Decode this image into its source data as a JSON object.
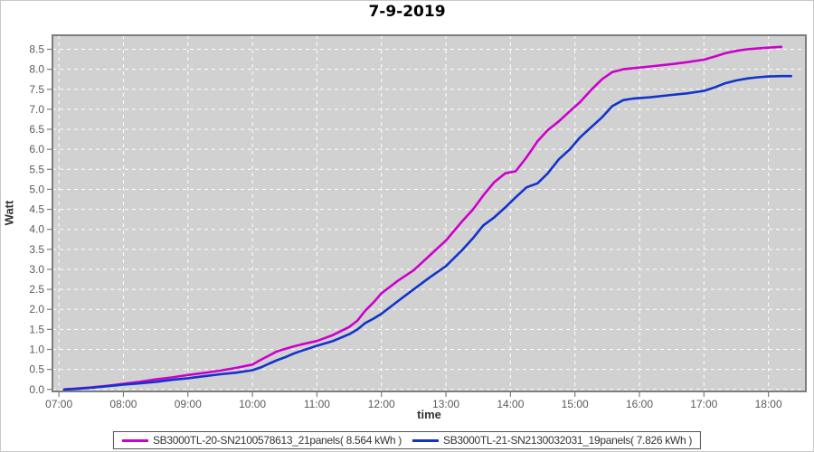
{
  "title": "7-9-2019",
  "axes": {
    "x_label": "time",
    "y_label": "Watt",
    "x_tick_labels": [
      "07:00",
      "08:00",
      "09:00",
      "10:00",
      "11:00",
      "12:00",
      "13:00",
      "14:00",
      "15:00",
      "16:00",
      "17:00",
      "18:00"
    ],
    "x_tick_values": [
      7,
      8,
      9,
      10,
      11,
      12,
      13,
      14,
      15,
      16,
      17,
      18
    ],
    "y_tick_labels": [
      "0.0",
      "0.5",
      "1.0",
      "1.5",
      "2.0",
      "2.5",
      "3.0",
      "3.5",
      "4.0",
      "4.5",
      "5.0",
      "5.5",
      "6.0",
      "6.5",
      "7.0",
      "7.5",
      "8.0",
      "8.5"
    ],
    "y_tick_values": [
      0,
      0.5,
      1,
      1.5,
      2,
      2.5,
      3,
      3.5,
      4,
      4.5,
      5,
      5.5,
      6,
      6.5,
      7,
      7.5,
      8,
      8.5
    ]
  },
  "legend": {
    "items": [
      {
        "label": "SB3000TL-20-SN2100578613_21panels( 8.564 kWh )",
        "color": "#cc00cc"
      },
      {
        "label": "SB3000TL-21-SN2130032031_19panels( 7.826 kWh )",
        "color": "#1233cc"
      }
    ]
  },
  "colors": {
    "plot_background": "#d1d1d1",
    "grid": "#ffffff",
    "plot_border": "#7d7d7d",
    "tick_label": "#5a5a5a",
    "series_magenta": "#cc00cc",
    "series_blue": "#1233cc"
  },
  "chart_data": {
    "type": "line",
    "title": "7-9-2019",
    "xlabel": "time",
    "ylabel": "Watt",
    "x_unit": "hour_of_day_decimal",
    "y_unit": "kWh (axis labelled Watt)",
    "xlim": [
      6.9,
      18.58
    ],
    "ylim": [
      -0.05,
      8.85
    ],
    "grid": {
      "color": "#ffffff",
      "style": "dashed",
      "x_step_hours": 1,
      "y_step": 0.5
    },
    "legend_position": "bottom",
    "series": [
      {
        "name": "SB3000TL-20-SN2100578613_21panels( 8.564 kWh )",
        "color": "#cc00cc",
        "total_kwh": 8.564,
        "points": [
          [
            7.08,
            0.0
          ],
          [
            7.25,
            0.02
          ],
          [
            7.5,
            0.05
          ],
          [
            7.75,
            0.09
          ],
          [
            8.0,
            0.14
          ],
          [
            8.25,
            0.19
          ],
          [
            8.5,
            0.25
          ],
          [
            8.75,
            0.3
          ],
          [
            9.0,
            0.36
          ],
          [
            9.25,
            0.41
          ],
          [
            9.5,
            0.47
          ],
          [
            9.75,
            0.54
          ],
          [
            10.0,
            0.62
          ],
          [
            10.13,
            0.74
          ],
          [
            10.25,
            0.84
          ],
          [
            10.38,
            0.95
          ],
          [
            10.5,
            1.01
          ],
          [
            10.63,
            1.07
          ],
          [
            10.75,
            1.12
          ],
          [
            11.0,
            1.21
          ],
          [
            11.25,
            1.36
          ],
          [
            11.5,
            1.56
          ],
          [
            11.63,
            1.72
          ],
          [
            11.75,
            1.97
          ],
          [
            11.88,
            2.18
          ],
          [
            12.0,
            2.4
          ],
          [
            12.25,
            2.71
          ],
          [
            12.5,
            2.98
          ],
          [
            12.75,
            3.35
          ],
          [
            13.0,
            3.72
          ],
          [
            13.25,
            4.2
          ],
          [
            13.42,
            4.5
          ],
          [
            13.58,
            4.85
          ],
          [
            13.75,
            5.18
          ],
          [
            13.92,
            5.4
          ],
          [
            14.08,
            5.45
          ],
          [
            14.25,
            5.8
          ],
          [
            14.42,
            6.2
          ],
          [
            14.58,
            6.48
          ],
          [
            14.75,
            6.7
          ],
          [
            14.92,
            6.95
          ],
          [
            15.08,
            7.18
          ],
          [
            15.25,
            7.48
          ],
          [
            15.42,
            7.75
          ],
          [
            15.58,
            7.93
          ],
          [
            15.75,
            8.0
          ],
          [
            15.92,
            8.03
          ],
          [
            16.17,
            8.07
          ],
          [
            16.5,
            8.13
          ],
          [
            16.75,
            8.18
          ],
          [
            17.0,
            8.24
          ],
          [
            17.17,
            8.32
          ],
          [
            17.33,
            8.4
          ],
          [
            17.5,
            8.46
          ],
          [
            17.67,
            8.5
          ],
          [
            17.83,
            8.52
          ],
          [
            18.0,
            8.54
          ],
          [
            18.2,
            8.56
          ]
        ]
      },
      {
        "name": "SB3000TL-21-SN2130032031_19panels( 7.826 kWh )",
        "color": "#1233cc",
        "total_kwh": 7.826,
        "points": [
          [
            7.08,
            0.0
          ],
          [
            7.25,
            0.01
          ],
          [
            7.5,
            0.04
          ],
          [
            7.75,
            0.08
          ],
          [
            8.0,
            0.12
          ],
          [
            8.25,
            0.15
          ],
          [
            8.5,
            0.19
          ],
          [
            8.75,
            0.24
          ],
          [
            9.0,
            0.28
          ],
          [
            9.25,
            0.33
          ],
          [
            9.5,
            0.38
          ],
          [
            9.75,
            0.42
          ],
          [
            10.0,
            0.48
          ],
          [
            10.13,
            0.55
          ],
          [
            10.25,
            0.64
          ],
          [
            10.38,
            0.73
          ],
          [
            10.5,
            0.8
          ],
          [
            10.63,
            0.89
          ],
          [
            10.75,
            0.96
          ],
          [
            11.0,
            1.09
          ],
          [
            11.25,
            1.21
          ],
          [
            11.5,
            1.38
          ],
          [
            11.63,
            1.5
          ],
          [
            11.75,
            1.66
          ],
          [
            11.88,
            1.77
          ],
          [
            12.0,
            1.89
          ],
          [
            12.25,
            2.2
          ],
          [
            12.5,
            2.5
          ],
          [
            12.75,
            2.8
          ],
          [
            13.0,
            3.08
          ],
          [
            13.25,
            3.48
          ],
          [
            13.42,
            3.78
          ],
          [
            13.58,
            4.1
          ],
          [
            13.75,
            4.3
          ],
          [
            13.92,
            4.55
          ],
          [
            14.08,
            4.8
          ],
          [
            14.25,
            5.05
          ],
          [
            14.42,
            5.15
          ],
          [
            14.58,
            5.4
          ],
          [
            14.75,
            5.75
          ],
          [
            14.92,
            6.0
          ],
          [
            15.08,
            6.3
          ],
          [
            15.25,
            6.55
          ],
          [
            15.42,
            6.8
          ],
          [
            15.58,
            7.08
          ],
          [
            15.75,
            7.23
          ],
          [
            15.92,
            7.27
          ],
          [
            16.17,
            7.3
          ],
          [
            16.5,
            7.36
          ],
          [
            16.75,
            7.4
          ],
          [
            17.0,
            7.46
          ],
          [
            17.17,
            7.55
          ],
          [
            17.33,
            7.65
          ],
          [
            17.5,
            7.72
          ],
          [
            17.67,
            7.77
          ],
          [
            17.83,
            7.8
          ],
          [
            18.0,
            7.82
          ],
          [
            18.2,
            7.83
          ],
          [
            18.35,
            7.83
          ]
        ]
      }
    ]
  }
}
